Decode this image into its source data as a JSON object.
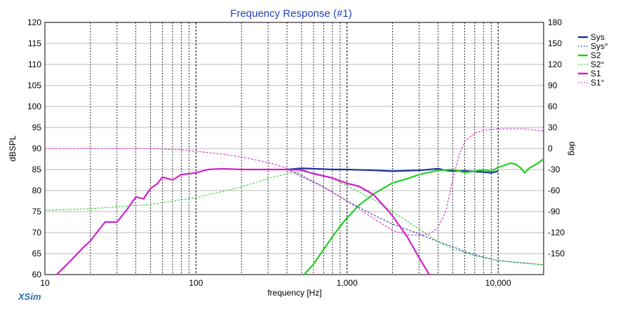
{
  "app": {
    "brand": "XSim"
  },
  "chart_data": {
    "type": "line",
    "title": "Frequency Response (#1)",
    "xlabel": "frequency [Hz]",
    "ylabel": "dBSPL",
    "y2label": "deg",
    "xscale": "log",
    "xlim": [
      10,
      20000
    ],
    "ylim": [
      60,
      120
    ],
    "y2lim": [
      -180,
      180
    ],
    "grid": true,
    "legend_position": "top-right",
    "x_tick_labels": [
      {
        "value": 10,
        "label": "10"
      },
      {
        "value": 100,
        "label": "100"
      },
      {
        "value": 1000,
        "label": "1,000"
      },
      {
        "value": 10000,
        "label": "10,000"
      }
    ],
    "y_ticks": [
      60,
      65,
      70,
      75,
      80,
      85,
      90,
      95,
      100,
      105,
      110,
      115,
      120
    ],
    "y2_ticks": [
      -150,
      -120,
      -90,
      -60,
      -30,
      0,
      30,
      60,
      90,
      120,
      150,
      180
    ],
    "series": [
      {
        "name": "Sys",
        "axis": "left",
        "style": "solid",
        "color": "#1a2fa0",
        "x": [
          400,
          500,
          600,
          800,
          1000,
          1500,
          2000,
          3000,
          3500,
          4000,
          4500,
          5000,
          6000,
          7000,
          8000,
          9000,
          10000
        ],
        "y": [
          85,
          85.3,
          85.2,
          85.0,
          85.0,
          84.8,
          84.6,
          84.8,
          85.0,
          85.2,
          84.8,
          84.6,
          84.7,
          84.5,
          84.4,
          84.2,
          84.6
        ]
      },
      {
        "name": "Sys°",
        "axis": "right",
        "style": "dashed",
        "color": "#1a2fa0",
        "x": [
          400,
          500,
          700,
          1000,
          1500,
          2000,
          3000,
          4000,
          5000,
          6000,
          8000,
          10000,
          20000
        ],
        "y": [
          -30,
          -40,
          -55,
          -75,
          -95,
          -108,
          -122,
          -133,
          -140,
          -147,
          -155,
          -160,
          -166
        ]
      },
      {
        "name": "S2",
        "axis": "left",
        "style": "solid",
        "color": "#20d020",
        "x": [
          520,
          600,
          700,
          800,
          900,
          1000,
          1200,
          1500,
          2000,
          2500,
          3000,
          4000,
          5000,
          6000,
          7000,
          8000,
          9000,
          10000,
          11000,
          12000,
          13000,
          14000,
          15000,
          16000,
          18000,
          20000
        ],
        "y": [
          60,
          62.5,
          66,
          69,
          71.5,
          73.5,
          76.5,
          79.2,
          81.8,
          82.8,
          83.8,
          84.8,
          85.0,
          84.3,
          84.6,
          84.9,
          84.6,
          85.5,
          86.0,
          86.5,
          86.3,
          85.5,
          84.2,
          85.3,
          86.3,
          87.5
        ]
      },
      {
        "name": "S2°",
        "axis": "right",
        "style": "dashed",
        "color": "#20d020",
        "x": [
          10,
          20,
          50,
          100,
          200,
          300,
          400,
          500,
          600,
          800,
          1000,
          1500,
          2000,
          3000,
          4000,
          5000,
          7000,
          10000,
          15000,
          20000
        ],
        "y": [
          -88,
          -86,
          -80,
          -70,
          -55,
          -43,
          -36,
          -33,
          -35,
          -43,
          -53,
          -73,
          -90,
          -115,
          -133,
          -143,
          -153,
          -160,
          -164,
          -166
        ]
      },
      {
        "name": "S1",
        "axis": "left",
        "style": "solid",
        "color": "#d020c8",
        "x": [
          12,
          15,
          18,
          20,
          25,
          30,
          35,
          40,
          45,
          50,
          55,
          60,
          70,
          80,
          90,
          100,
          120,
          150,
          200,
          300,
          400,
          500,
          600,
          800,
          1000,
          1200,
          1500,
          2000,
          2500,
          3000,
          3500
        ],
        "y": [
          60,
          63.5,
          66.5,
          68,
          72.5,
          72.5,
          75.5,
          78.5,
          78,
          80.5,
          81.5,
          83.2,
          82.5,
          83.8,
          84.0,
          84.2,
          85.0,
          85.2,
          85.0,
          85.0,
          85.0,
          84.9,
          84.0,
          83.0,
          81.7,
          81.0,
          79.0,
          74.0,
          69.0,
          64.0,
          60.0
        ]
      },
      {
        "name": "S1°",
        "axis": "right",
        "style": "dashed",
        "color": "#d020c8",
        "x": [
          10,
          30,
          50,
          80,
          100,
          150,
          200,
          300,
          400,
          500,
          700,
          1000,
          1500,
          2000,
          2500,
          3000,
          3500,
          4000,
          4500,
          5000,
          5500,
          6000,
          7000,
          8000,
          10000,
          15000,
          20000
        ],
        "y": [
          0,
          0,
          0,
          -2,
          -4,
          -8,
          -12,
          -20,
          -28,
          -38,
          -55,
          -75,
          -100,
          -117,
          -123,
          -124,
          -122,
          -113,
          -90,
          -45,
          -10,
          10,
          22,
          26,
          28,
          28,
          25
        ]
      }
    ]
  }
}
